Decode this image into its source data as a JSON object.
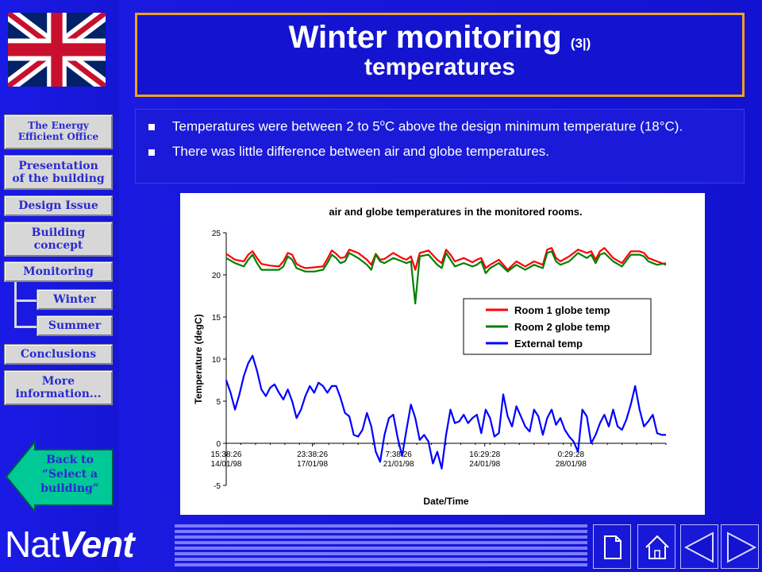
{
  "nav": {
    "energy_office": [
      "The Energy",
      "Efficient Office"
    ],
    "presentation": [
      "Presentation",
      "of the building"
    ],
    "design_issue": [
      "Design Issue"
    ],
    "building_concept": [
      "Building",
      "concept"
    ],
    "monitoring": [
      "Monitoring"
    ],
    "winter": [
      "Winter"
    ],
    "summer": [
      "Summer"
    ],
    "conclusions": [
      "Conclusions"
    ],
    "more_info": [
      "More",
      "information..."
    ],
    "back": [
      "Back to",
      "“Select a",
      "building”"
    ]
  },
  "brand": {
    "nat": "Nat",
    "vent": "Vent"
  },
  "header": {
    "title": "Winter monitoring",
    "title_small": "(3|)",
    "subtitle": "temperatures"
  },
  "bullets": [
    {
      "pre": "Temperatures were between 2 to 5",
      "sup": "o",
      "post": "C above the design minimum temperature (18°C)."
    },
    {
      "pre": "There was little difference between air and globe temperatures.",
      "sup": "",
      "post": ""
    }
  ],
  "colors": {
    "background": "#1313d8",
    "title_border": "#f0a020",
    "series_room1": "#ff0000",
    "series_room2": "#008000",
    "series_external": "#0000ff"
  },
  "icons": [
    "union-jack-flag-icon",
    "back-arrow-icon",
    "page-icon",
    "home-icon",
    "prev-arrow-icon",
    "next-arrow-icon"
  ],
  "chart_data": {
    "type": "line",
    "title": "air and globe temperatures in the monitored rooms.",
    "xlabel": "Date/Time",
    "ylabel": "Temperature (degC)",
    "ylim": [
      -5,
      25
    ],
    "yticks": [
      -5,
      0,
      5,
      10,
      15,
      20,
      25
    ],
    "x_range": [
      0,
      100
    ],
    "xticks": [
      {
        "x": 0,
        "time": "15:38:26",
        "date": "14/01/98"
      },
      {
        "x": 19.6,
        "time": "23:38:26",
        "date": "17/01/98"
      },
      {
        "x": 39.2,
        "time": "7:38:26",
        "date": "21/01/98"
      },
      {
        "x": 58.8,
        "time": "16:29:28",
        "date": "24/01/98"
      },
      {
        "x": 78.4,
        "time": "0:29:28",
        "date": "28/01/98"
      }
    ],
    "legend_position": "center-right",
    "grid": false,
    "series": [
      {
        "name": "Room 1 globe temp",
        "color": "#ff0000",
        "x": [
          0,
          2,
          4,
          5,
          6,
          7,
          8,
          10,
          12,
          13,
          14,
          15,
          16,
          17,
          18,
          20,
          22,
          23,
          24,
          25,
          26,
          27,
          28,
          30,
          32,
          33,
          34,
          35,
          36,
          38,
          40,
          41,
          42,
          43,
          44,
          46,
          48,
          49,
          50,
          51,
          52,
          54,
          56,
          57,
          58,
          59,
          60,
          62,
          64,
          66,
          68,
          70,
          72,
          73,
          74,
          75,
          76,
          78,
          80,
          82,
          83,
          84,
          85,
          86,
          88,
          90,
          92,
          94,
          95,
          96,
          98,
          100
        ],
        "y": [
          22.5,
          21.8,
          21.6,
          22.4,
          22.8,
          22.0,
          21.3,
          21.1,
          21.0,
          21.6,
          22.6,
          22.4,
          21.3,
          21.0,
          20.8,
          20.9,
          21.0,
          21.9,
          22.9,
          22.5,
          22.0,
          22.1,
          23.0,
          22.6,
          21.8,
          21.2,
          22.5,
          21.8,
          21.9,
          22.6,
          22.0,
          21.8,
          22.2,
          20.6,
          22.6,
          22.9,
          21.8,
          21.4,
          23.0,
          22.4,
          21.6,
          22.0,
          21.5,
          21.8,
          22.0,
          20.8,
          21.2,
          21.8,
          20.6,
          21.6,
          21.0,
          21.6,
          21.2,
          23.0,
          23.2,
          22.0,
          21.6,
          22.2,
          23.0,
          22.6,
          22.8,
          21.8,
          22.8,
          23.2,
          22.0,
          21.4,
          22.8,
          22.8,
          22.6,
          22.0,
          21.6,
          21.2
        ]
      },
      {
        "name": "Room 2 globe temp",
        "color": "#008000",
        "x": [
          0,
          2,
          4,
          5,
          6,
          7,
          8,
          10,
          12,
          13,
          14,
          15,
          16,
          17,
          18,
          20,
          22,
          23,
          24,
          25,
          26,
          27,
          28,
          30,
          32,
          33,
          34,
          35,
          36,
          38,
          40,
          41,
          42,
          43,
          44,
          46,
          48,
          49,
          50,
          51,
          52,
          54,
          56,
          57,
          58,
          59,
          60,
          62,
          64,
          66,
          68,
          70,
          72,
          73,
          74,
          75,
          76,
          78,
          80,
          82,
          83,
          84,
          85,
          86,
          88,
          90,
          92,
          94,
          95,
          96,
          98,
          100
        ],
        "y": [
          22.0,
          21.4,
          21.0,
          21.8,
          22.4,
          21.4,
          20.6,
          20.6,
          20.6,
          21.0,
          22.2,
          21.8,
          20.8,
          20.6,
          20.4,
          20.4,
          20.6,
          21.4,
          22.4,
          22.0,
          21.4,
          21.6,
          22.6,
          22.0,
          21.2,
          20.6,
          22.4,
          21.6,
          21.4,
          22.0,
          21.6,
          21.4,
          21.6,
          16.6,
          22.2,
          22.4,
          21.2,
          20.8,
          22.6,
          21.8,
          21.0,
          21.4,
          21.0,
          21.2,
          21.6,
          20.2,
          20.8,
          21.4,
          20.4,
          21.2,
          20.6,
          21.2,
          20.8,
          22.6,
          22.8,
          21.6,
          21.2,
          21.6,
          22.6,
          22.0,
          22.4,
          21.4,
          22.4,
          22.6,
          21.6,
          21.0,
          22.4,
          22.4,
          22.2,
          21.6,
          21.2,
          21.4
        ]
      },
      {
        "name": "External temp",
        "color": "#0000ff",
        "x": [
          0,
          1,
          2,
          3,
          4,
          5,
          6,
          7,
          8,
          9,
          10,
          11,
          12,
          13,
          14,
          15,
          16,
          17,
          18,
          19,
          20,
          21,
          22,
          23,
          24,
          25,
          26,
          27,
          28,
          29,
          30,
          31,
          32,
          33,
          34,
          35,
          36,
          37,
          38,
          39,
          40,
          41,
          42,
          43,
          44,
          45,
          46,
          47,
          48,
          49,
          50,
          51,
          52,
          53,
          54,
          55,
          56,
          57,
          58,
          59,
          60,
          61,
          62,
          63,
          64,
          65,
          66,
          67,
          68,
          69,
          70,
          71,
          72,
          73,
          74,
          75,
          76,
          77,
          78,
          79,
          80,
          81,
          82,
          83,
          84,
          85,
          86,
          87,
          88,
          89,
          90,
          91,
          92,
          93,
          94,
          95,
          96,
          97,
          98,
          99,
          100
        ],
        "y": [
          7.5,
          6.0,
          4.0,
          5.8,
          8.0,
          9.5,
          10.4,
          8.6,
          6.4,
          5.6,
          6.6,
          7.0,
          6.0,
          5.2,
          6.4,
          5.0,
          3.0,
          4.0,
          5.6,
          6.8,
          6.0,
          7.2,
          6.8,
          6.0,
          6.8,
          6.8,
          5.4,
          3.6,
          3.2,
          1.0,
          0.8,
          1.6,
          3.6,
          2.0,
          -1.0,
          -2.2,
          1.0,
          3.0,
          3.4,
          0.6,
          -1.5,
          1.6,
          4.6,
          3.0,
          0.4,
          1.0,
          0.2,
          -2.4,
          -1.0,
          -3.0,
          1.0,
          4.0,
          2.4,
          2.6,
          3.4,
          2.4,
          3.0,
          3.4,
          1.2,
          4.0,
          3.0,
          0.8,
          1.2,
          5.8,
          3.2,
          2.0,
          4.4,
          3.2,
          2.0,
          1.4,
          4.0,
          3.2,
          1.0,
          3.0,
          4.0,
          2.2,
          3.0,
          1.6,
          0.8,
          0.2,
          -1.0,
          4.0,
          3.2,
          0.0,
          1.0,
          2.4,
          3.4,
          2.0,
          4.0,
          2.0,
          1.6,
          2.8,
          4.6,
          6.8,
          4.0,
          2.0,
          2.6,
          3.4,
          1.2,
          1.0,
          1.0
        ]
      }
    ]
  }
}
